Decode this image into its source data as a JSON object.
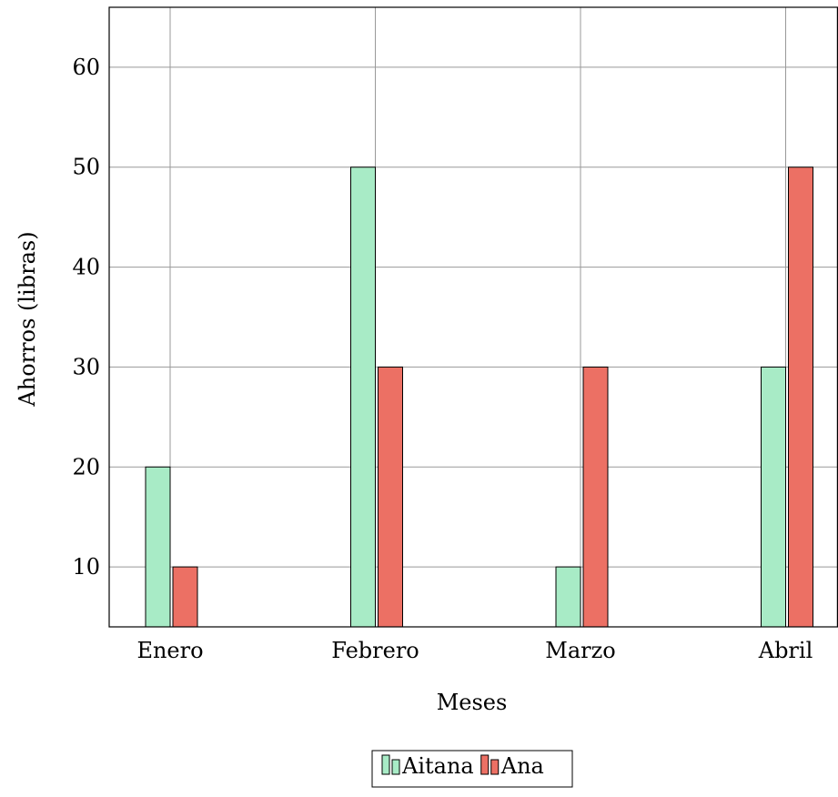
{
  "chart_data": {
    "type": "bar",
    "categories": [
      "Enero",
      "Febrero",
      "Marzo",
      "Abril"
    ],
    "series": [
      {
        "name": "Aitana",
        "values": [
          20,
          50,
          10,
          30
        ],
        "color": "#a8ebc6"
      },
      {
        "name": "Ana",
        "values": [
          10,
          30,
          30,
          50
        ],
        "color": "#ec7064"
      }
    ],
    "xlabel": "Meses",
    "ylabel": "Ahorros (libras)",
    "ylim": [
      4,
      66
    ],
    "yticks": [
      10,
      20,
      30,
      40,
      50,
      60
    ],
    "grid": true,
    "legend": "bottom-center"
  }
}
